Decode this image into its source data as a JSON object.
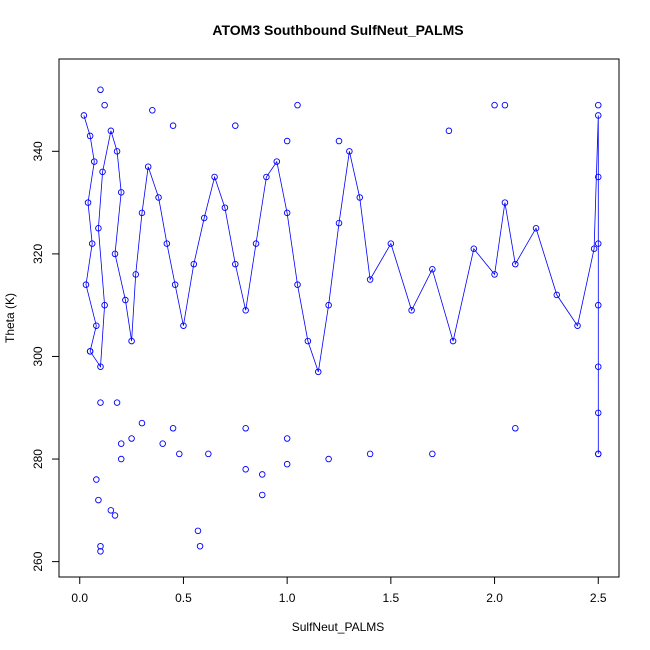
{
  "chart_data": {
    "type": "scatter",
    "title": "ATOM3 Southbound SulfNeut_PALMS",
    "xlabel": "SulfNeut_PALMS",
    "ylabel": "Theta (K)",
    "xlim": [
      -0.1,
      2.6
    ],
    "ylim": [
      257,
      358
    ],
    "x_ticks": [
      0.0,
      0.5,
      1.0,
      1.5,
      2.0,
      2.5
    ],
    "x_tick_labels": [
      "0.0",
      "0.5",
      "1.0",
      "1.5",
      "2.0",
      "2.5"
    ],
    "y_ticks": [
      260,
      280,
      300,
      320,
      340
    ],
    "y_tick_labels": [
      "260",
      "280",
      "300",
      "320",
      "340"
    ],
    "grid": false,
    "legend": "none",
    "color": "#0000ff",
    "marker": "open-circle",
    "series": [
      {
        "style": "points-and-lines",
        "points": [
          [
            0.02,
            347
          ],
          [
            0.05,
            343
          ],
          [
            0.07,
            338
          ],
          [
            0.04,
            330
          ],
          [
            0.06,
            322
          ],
          [
            0.03,
            314
          ],
          [
            0.08,
            306
          ],
          [
            0.05,
            301
          ],
          [
            0.1,
            298
          ],
          [
            0.12,
            310
          ],
          [
            0.09,
            325
          ],
          [
            0.11,
            336
          ],
          [
            0.15,
            344
          ],
          [
            0.18,
            340
          ],
          [
            0.2,
            332
          ],
          [
            0.17,
            320
          ],
          [
            0.22,
            311
          ],
          [
            0.25,
            303
          ],
          [
            0.27,
            316
          ],
          [
            0.3,
            328
          ],
          [
            0.33,
            337
          ],
          [
            0.38,
            331
          ],
          [
            0.42,
            322
          ],
          [
            0.46,
            314
          ],
          [
            0.5,
            306
          ],
          [
            0.55,
            318
          ],
          [
            0.6,
            327
          ],
          [
            0.65,
            335
          ],
          [
            0.7,
            329
          ],
          [
            0.75,
            318
          ],
          [
            0.8,
            309
          ],
          [
            0.85,
            322
          ],
          [
            0.9,
            335
          ],
          [
            0.95,
            338
          ],
          [
            1.0,
            328
          ],
          [
            1.05,
            314
          ],
          [
            1.1,
            303
          ],
          [
            1.15,
            297
          ],
          [
            1.2,
            310
          ],
          [
            1.25,
            326
          ],
          [
            1.3,
            340
          ],
          [
            1.35,
            331
          ],
          [
            1.4,
            315
          ],
          [
            1.5,
            322
          ],
          [
            1.6,
            309
          ],
          [
            1.7,
            317
          ],
          [
            1.8,
            303
          ],
          [
            1.9,
            321
          ],
          [
            2.0,
            316
          ],
          [
            2.05,
            330
          ],
          [
            2.1,
            318
          ],
          [
            2.2,
            325
          ],
          [
            2.3,
            312
          ],
          [
            2.4,
            306
          ],
          [
            2.48,
            321
          ],
          [
            2.5,
            347
          ],
          [
            2.5,
            335
          ],
          [
            2.5,
            322
          ],
          [
            2.5,
            310
          ],
          [
            2.5,
            298
          ],
          [
            2.5,
            289
          ],
          [
            2.5,
            281
          ]
        ]
      },
      {
        "style": "points",
        "points": [
          [
            0.1,
            263
          ],
          [
            0.1,
            262
          ],
          [
            0.15,
            270
          ],
          [
            0.17,
            269
          ],
          [
            0.08,
            276
          ],
          [
            0.09,
            272
          ],
          [
            0.2,
            280
          ],
          [
            0.2,
            283
          ],
          [
            0.25,
            284
          ],
          [
            0.3,
            287
          ],
          [
            0.4,
            283
          ],
          [
            0.45,
            286
          ],
          [
            0.57,
            266
          ],
          [
            0.58,
            263
          ],
          [
            0.62,
            281
          ],
          [
            0.8,
            286
          ],
          [
            0.88,
            273
          ],
          [
            0.88,
            277
          ],
          [
            1.0,
            279
          ],
          [
            1.2,
            280
          ],
          [
            1.4,
            281
          ],
          [
            1.7,
            281
          ],
          [
            2.1,
            286
          ],
          [
            2.5,
            281
          ],
          [
            0.05,
            301
          ],
          [
            0.1,
            291
          ],
          [
            0.18,
            291
          ],
          [
            0.48,
            281
          ],
          [
            0.8,
            278
          ],
          [
            1.0,
            284
          ],
          [
            1.05,
            349
          ],
          [
            2.0,
            349
          ],
          [
            2.05,
            349
          ],
          [
            2.5,
            349
          ],
          [
            0.1,
            352
          ],
          [
            0.12,
            349
          ],
          [
            0.35,
            348
          ],
          [
            0.45,
            345
          ],
          [
            0.75,
            345
          ],
          [
            1.0,
            342
          ],
          [
            1.25,
            342
          ],
          [
            1.78,
            344
          ]
        ]
      }
    ]
  }
}
